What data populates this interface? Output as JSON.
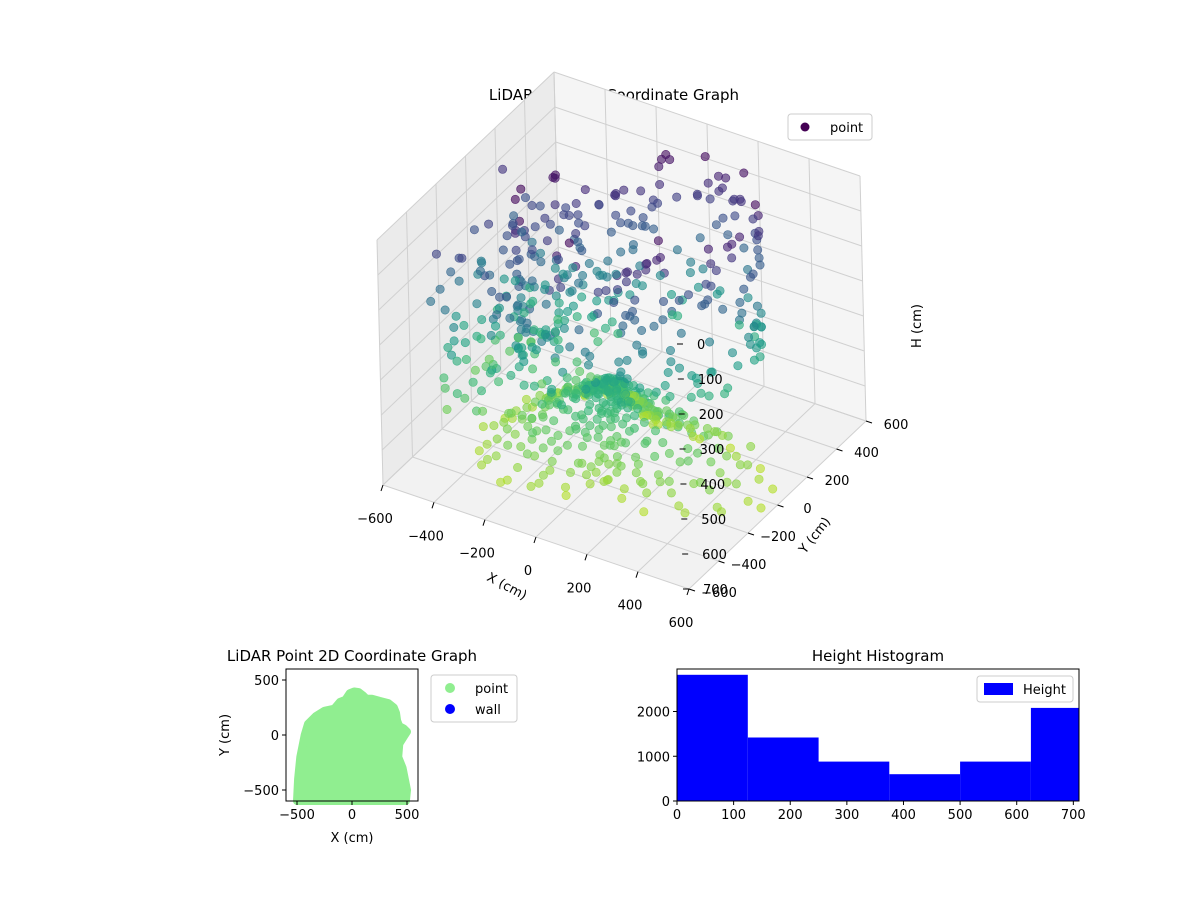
{
  "chart_data": [
    {
      "type": "scatter",
      "projection": "3d",
      "title": "LiDAR Point 3D Coordinate Graph",
      "xlabel": "X (cm)",
      "ylabel": "Y (cm)",
      "zlabel": "H (cm)",
      "xlim": [
        -600,
        600
      ],
      "ylim": [
        -600,
        600
      ],
      "zlim": [
        700,
        0
      ],
      "xticks": [
        -600,
        -400,
        -200,
        0,
        200,
        400,
        600
      ],
      "yticks": [
        -600,
        -400,
        -200,
        0,
        200,
        400,
        600
      ],
      "zticks": [
        0,
        100,
        200,
        300,
        400,
        500,
        600,
        700
      ],
      "xtick_labels": [
        "−600",
        "−400",
        "−200",
        "0",
        "200",
        "400",
        "600"
      ],
      "ytick_labels": [
        "−600",
        "−400",
        "−200",
        "0",
        "200",
        "400",
        "600"
      ],
      "ztick_labels": [
        "0",
        "100",
        "200",
        "300",
        "400",
        "500",
        "600",
        "700"
      ],
      "colormap": "viridis",
      "grid": true,
      "legend": [
        {
          "name": "point",
          "color": "#440154",
          "marker": "circle"
        }
      ],
      "legend_position": "top-right"
    },
    {
      "type": "scatter",
      "title": "LiDAR Point 2D Coordinate Graph",
      "xlabel": "X (cm)",
      "ylabel": "Y (cm)",
      "xlim": [
        -600,
        600
      ],
      "ylim": [
        -600,
        600
      ],
      "xticks": [
        -500,
        0,
        500
      ],
      "yticks": [
        -500,
        0,
        500
      ],
      "xtick_labels": [
        "−500",
        "0",
        "500"
      ],
      "ytick_labels": [
        "−500",
        "0",
        "500"
      ],
      "region_outline_xy": [
        [
          -500,
          -600
        ],
        [
          -490,
          -400
        ],
        [
          -470,
          -200
        ],
        [
          -450,
          -100
        ],
        [
          -430,
          0
        ],
        [
          -400,
          100
        ],
        [
          -330,
          170
        ],
        [
          -250,
          220
        ],
        [
          -160,
          240
        ],
        [
          -110,
          300
        ],
        [
          -60,
          320
        ],
        [
          -20,
          380
        ],
        [
          20,
          395
        ],
        [
          60,
          390
        ],
        [
          100,
          360
        ],
        [
          130,
          330
        ],
        [
          180,
          330
        ],
        [
          250,
          310
        ],
        [
          330,
          290
        ],
        [
          380,
          250
        ],
        [
          400,
          200
        ],
        [
          410,
          130
        ],
        [
          430,
          80
        ],
        [
          470,
          60
        ],
        [
          500,
          30
        ],
        [
          480,
          0
        ],
        [
          430,
          -80
        ],
        [
          420,
          -200
        ],
        [
          460,
          -300
        ],
        [
          480,
          -400
        ],
        [
          500,
          -500
        ],
        [
          490,
          -600
        ]
      ],
      "series": [
        {
          "name": "point",
          "color": "#90ee90"
        },
        {
          "name": "wall",
          "color": "#0000ff"
        }
      ],
      "legend_position": "outside-right"
    },
    {
      "type": "bar",
      "subtype": "histogram",
      "title": "Height Histogram",
      "bin_edges": [
        0,
        125,
        250,
        375,
        500,
        625,
        710
      ],
      "values": [
        2820,
        1420,
        880,
        600,
        880,
        2080
      ],
      "xlim": [
        0,
        710
      ],
      "ylim": [
        0,
        2950
      ],
      "xticks": [
        0,
        100,
        200,
        300,
        400,
        500,
        600,
        700
      ],
      "yticks": [
        0,
        1000,
        2000
      ],
      "color": "#0000ff",
      "series": [
        {
          "name": "Height",
          "color": "#0000ff"
        }
      ],
      "legend_position": "top-right"
    }
  ]
}
